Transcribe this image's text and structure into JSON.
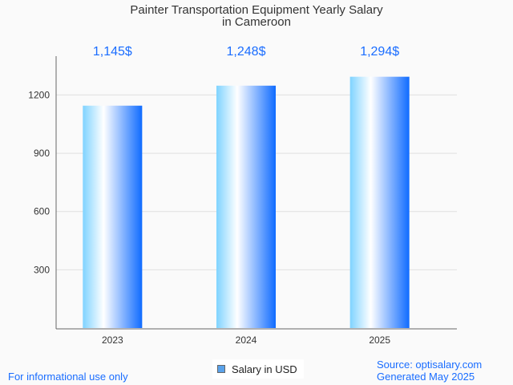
{
  "chart_data": {
    "type": "bar",
    "title_line1": "Painter Transportation Equipment Yearly Salary",
    "title_line2": "in Cameroon",
    "categories": [
      "2023",
      "2024",
      "2025"
    ],
    "values": [
      1145,
      1248,
      1294
    ],
    "data_labels": [
      "1,145$",
      "1,248$",
      "1,294$"
    ],
    "yticks": [
      300,
      600,
      900,
      1200
    ],
    "ylim": [
      0,
      1400
    ],
    "xlabel": "",
    "ylabel": "",
    "grid": true,
    "legend": {
      "label": "Salary in USD",
      "placement": "bottom-center"
    },
    "colors": {
      "bar_left": "#7fd3ff",
      "bar_mid": "#ffffff",
      "bar_right": "#0f6bff",
      "label": "#1a6dff"
    }
  },
  "footer": {
    "disclaimer": "For informational use only",
    "source": "Source: optisalary.com",
    "generated": "Generated May 2025"
  }
}
